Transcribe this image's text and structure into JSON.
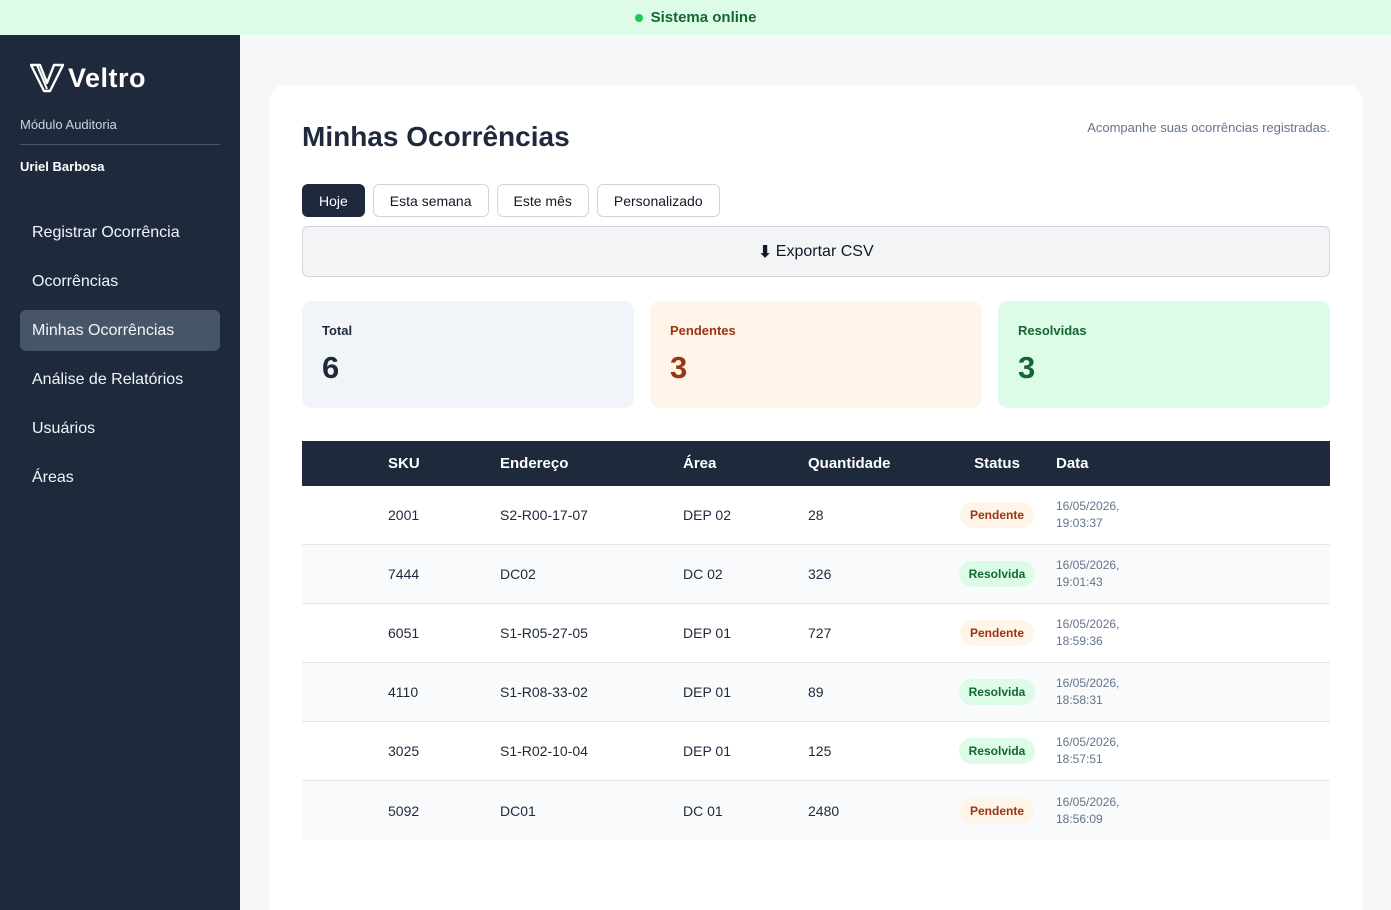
{
  "topbar": {
    "status_text": "Sistema online",
    "status_color": "#22c55e"
  },
  "sidebar": {
    "brand": "Veltro",
    "module": "Módulo Auditoria",
    "user": "Uriel Barbosa",
    "items": [
      {
        "label": "Registrar Ocorrência",
        "active": false
      },
      {
        "label": "Ocorrências",
        "active": false
      },
      {
        "label": "Minhas Ocorrências",
        "active": true
      },
      {
        "label": "Análise de Relatórios",
        "active": false
      },
      {
        "label": "Usuários",
        "active": false
      },
      {
        "label": "Áreas",
        "active": false
      }
    ]
  },
  "main": {
    "title": "Minhas Ocorrências",
    "subtitle": "Acompanhe suas ocorrências registradas.",
    "filters": [
      {
        "label": "Hoje",
        "active": true
      },
      {
        "label": "Esta semana",
        "active": false
      },
      {
        "label": "Este mês",
        "active": false
      },
      {
        "label": "Personalizado",
        "active": false
      }
    ],
    "export_icon": "⬇",
    "export_label": "Exportar CSV",
    "stats": {
      "total": {
        "label": "Total",
        "value": "6"
      },
      "pending": {
        "label": "Pendentes",
        "value": "3"
      },
      "resolved": {
        "label": "Resolvidas",
        "value": "3"
      }
    },
    "table": {
      "headers": [
        "SKU",
        "Endereço",
        "Área",
        "Quantidade",
        "Status",
        "Data"
      ],
      "rows": [
        {
          "sku": "2001",
          "endereco": "S2-R00-17-07",
          "area": "DEP 02",
          "quantidade": "28",
          "status": "Pendente",
          "data": "16/05/2026, 19:03:37"
        },
        {
          "sku": "7444",
          "endereco": "DC02",
          "area": "DC 02",
          "quantidade": "326",
          "status": "Resolvida",
          "data": "16/05/2026, 19:01:43"
        },
        {
          "sku": "6051",
          "endereco": "S1-R05-27-05",
          "area": "DEP 01",
          "quantidade": "727",
          "status": "Pendente",
          "data": "16/05/2026, 18:59:36"
        },
        {
          "sku": "4110",
          "endereco": "S1-R08-33-02",
          "area": "DEP 01",
          "quantidade": "89",
          "status": "Resolvida",
          "data": "16/05/2026, 18:58:31"
        },
        {
          "sku": "3025",
          "endereco": "S1-R02-10-04",
          "area": "DEP 01",
          "quantidade": "125",
          "status": "Resolvida",
          "data": "16/05/2026, 18:57:51"
        },
        {
          "sku": "5092",
          "endereco": "DC01",
          "area": "DC 01",
          "quantidade": "2480",
          "status": "Pendente",
          "data": "16/05/2026, 18:56:09"
        }
      ]
    }
  },
  "colors": {
    "sidebar_bg": "#1e293b",
    "accent_dark": "#1e293b",
    "pending": "#9a3412",
    "resolved": "#166534"
  }
}
